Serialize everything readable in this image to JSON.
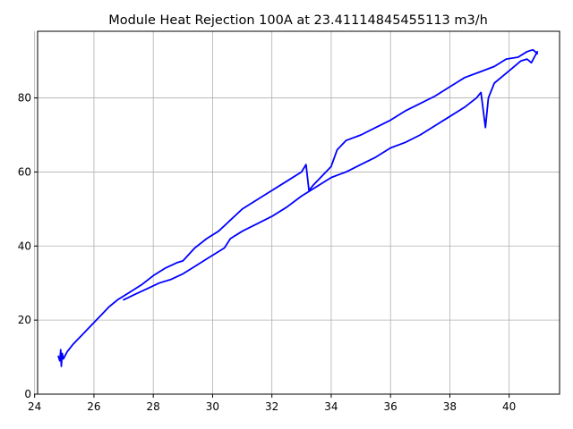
{
  "chart_data": {
    "type": "line",
    "title": "Module Heat Rejection 100A at 23.41114845455113 m3/h",
    "xlabel": "",
    "ylabel": "",
    "xlim": [
      24.1,
      41.7
    ],
    "ylim": [
      0,
      98
    ],
    "xticks": [
      24,
      26,
      28,
      30,
      32,
      34,
      36,
      38,
      40
    ],
    "yticks": [
      0,
      20,
      40,
      60,
      80
    ],
    "grid": true,
    "series_color": "#0000ff",
    "series": [
      {
        "points": [
          [
            24.8,
            10.2
          ],
          [
            24.85,
            9.0
          ],
          [
            24.88,
            12.0
          ],
          [
            24.9,
            7.5
          ],
          [
            24.93,
            11.0
          ],
          [
            24.97,
            9.5
          ],
          [
            25.1,
            11.5
          ],
          [
            25.3,
            13.5
          ],
          [
            25.6,
            16.0
          ],
          [
            25.9,
            18.5
          ],
          [
            26.2,
            21.0
          ],
          [
            26.5,
            23.5
          ],
          [
            26.8,
            25.5
          ],
          [
            27.2,
            27.5
          ],
          [
            27.6,
            29.5
          ],
          [
            28.0,
            32.0
          ],
          [
            28.4,
            34.0
          ],
          [
            28.8,
            35.5
          ],
          [
            29.0,
            36.0
          ],
          [
            29.4,
            39.5
          ],
          [
            29.8,
            42.0
          ],
          [
            30.2,
            44.0
          ],
          [
            30.6,
            47.0
          ],
          [
            31.0,
            50.0
          ],
          [
            31.5,
            52.5
          ],
          [
            32.0,
            55.0
          ],
          [
            32.5,
            57.5
          ],
          [
            33.0,
            60.0
          ],
          [
            33.15,
            62.0
          ],
          [
            33.25,
            55.0
          ],
          [
            33.4,
            56.5
          ],
          [
            33.7,
            59.0
          ],
          [
            34.0,
            61.5
          ],
          [
            34.2,
            66.0
          ],
          [
            34.5,
            68.5
          ],
          [
            35.0,
            70.0
          ],
          [
            35.5,
            72.0
          ],
          [
            36.0,
            74.0
          ],
          [
            36.5,
            76.5
          ],
          [
            37.0,
            78.5
          ],
          [
            37.5,
            80.5
          ],
          [
            38.0,
            83.0
          ],
          [
            38.5,
            85.5
          ],
          [
            39.0,
            87.0
          ],
          [
            39.5,
            88.5
          ],
          [
            39.9,
            90.5
          ],
          [
            40.3,
            91.0
          ],
          [
            40.6,
            92.5
          ],
          [
            40.8,
            93.0
          ],
          [
            40.95,
            92.0
          ]
        ]
      },
      {
        "points": [
          [
            27.0,
            25.5
          ],
          [
            27.4,
            27.0
          ],
          [
            27.8,
            28.5
          ],
          [
            28.2,
            30.0
          ],
          [
            28.6,
            31.0
          ],
          [
            29.0,
            32.5
          ],
          [
            29.4,
            34.5
          ],
          [
            29.8,
            36.5
          ],
          [
            30.2,
            38.5
          ],
          [
            30.4,
            39.5
          ],
          [
            30.6,
            42.0
          ],
          [
            31.0,
            44.0
          ],
          [
            31.5,
            46.0
          ],
          [
            32.0,
            48.0
          ],
          [
            32.5,
            50.5
          ],
          [
            33.0,
            53.5
          ],
          [
            33.5,
            56.0
          ],
          [
            34.0,
            58.5
          ],
          [
            34.5,
            60.0
          ],
          [
            35.0,
            62.0
          ],
          [
            35.5,
            64.0
          ],
          [
            36.0,
            66.5
          ],
          [
            36.5,
            68.0
          ],
          [
            37.0,
            70.0
          ],
          [
            37.5,
            72.5
          ],
          [
            38.0,
            75.0
          ],
          [
            38.5,
            77.5
          ],
          [
            38.9,
            80.0
          ],
          [
            39.05,
            81.5
          ],
          [
            39.2,
            72.0
          ],
          [
            39.3,
            80.0
          ],
          [
            39.5,
            84.0
          ],
          [
            39.8,
            86.0
          ],
          [
            40.1,
            88.0
          ],
          [
            40.4,
            90.0
          ],
          [
            40.6,
            90.5
          ],
          [
            40.75,
            89.5
          ],
          [
            40.85,
            91.0
          ],
          [
            40.95,
            92.5
          ]
        ]
      }
    ]
  }
}
